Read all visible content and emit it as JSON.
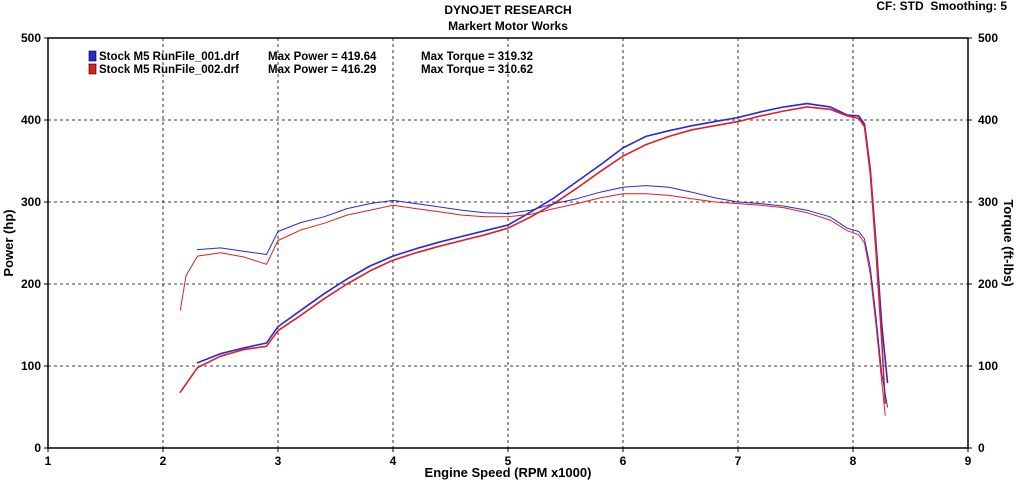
{
  "header": {
    "title": "DYNOJET RESEARCH",
    "subtitle": "Markert Motor Works",
    "corner": "CF: STD  Smoothing: 5"
  },
  "chart_data": {
    "type": "line",
    "xlabel": "Engine Speed (RPM x1000)",
    "ylabel_left": "Power (hp)",
    "ylabel_right": "Torque (ft-lbs)",
    "xlim": [
      1,
      9
    ],
    "ylim": [
      0,
      500
    ],
    "x_ticks": [
      "1",
      "2",
      "3",
      "4",
      "5",
      "6",
      "7",
      "8",
      "9"
    ],
    "y_ticks": [
      "0",
      "100",
      "200",
      "300",
      "400",
      "500"
    ],
    "grid": true,
    "legend": {
      "position": "top-left",
      "entries": [
        {
          "file": "Stock M5 RunFile_001.drf",
          "max_power": "Max Power = 419.64",
          "max_torque": "Max Torque = 319.32",
          "color": "#2828d8"
        },
        {
          "file": "Stock M5 RunFile_002.drf",
          "max_power": "Max Power = 416.29",
          "max_torque": "Max Torque = 310.62",
          "color": "#e02020"
        }
      ]
    },
    "series": [
      {
        "kind": "power",
        "color": "#2828d8",
        "points": [
          [
            2.3,
            104
          ],
          [
            2.5,
            115
          ],
          [
            2.7,
            122
          ],
          [
            2.9,
            128
          ],
          [
            3.0,
            148
          ],
          [
            3.2,
            168
          ],
          [
            3.4,
            188
          ],
          [
            3.6,
            206
          ],
          [
            3.8,
            222
          ],
          [
            4.0,
            234
          ],
          [
            4.2,
            243
          ],
          [
            4.4,
            251
          ],
          [
            4.6,
            258
          ],
          [
            4.8,
            265
          ],
          [
            5.0,
            272
          ],
          [
            5.2,
            288
          ],
          [
            5.4,
            305
          ],
          [
            5.6,
            325
          ],
          [
            5.8,
            345
          ],
          [
            6.0,
            366
          ],
          [
            6.2,
            380
          ],
          [
            6.4,
            387
          ],
          [
            6.6,
            393
          ],
          [
            6.8,
            398
          ],
          [
            7.0,
            403
          ],
          [
            7.2,
            410
          ],
          [
            7.4,
            416
          ],
          [
            7.6,
            420
          ],
          [
            7.8,
            416
          ],
          [
            7.95,
            406
          ],
          [
            8.05,
            405
          ],
          [
            8.1,
            395
          ],
          [
            8.15,
            340
          ],
          [
            8.2,
            250
          ],
          [
            8.25,
            150
          ],
          [
            8.3,
            80
          ]
        ]
      },
      {
        "kind": "power",
        "color": "#e02020",
        "points": [
          [
            2.15,
            68
          ],
          [
            2.3,
            98
          ],
          [
            2.5,
            112
          ],
          [
            2.7,
            120
          ],
          [
            2.9,
            124
          ],
          [
            3.0,
            143
          ],
          [
            3.2,
            162
          ],
          [
            3.4,
            182
          ],
          [
            3.6,
            200
          ],
          [
            3.8,
            216
          ],
          [
            4.0,
            229
          ],
          [
            4.2,
            238
          ],
          [
            4.4,
            246
          ],
          [
            4.6,
            253
          ],
          [
            4.8,
            260
          ],
          [
            5.0,
            268
          ],
          [
            5.2,
            282
          ],
          [
            5.4,
            298
          ],
          [
            5.6,
            317
          ],
          [
            5.8,
            337
          ],
          [
            6.0,
            356
          ],
          [
            6.2,
            370
          ],
          [
            6.4,
            380
          ],
          [
            6.6,
            388
          ],
          [
            6.8,
            393
          ],
          [
            7.0,
            398
          ],
          [
            7.2,
            405
          ],
          [
            7.4,
            411
          ],
          [
            7.6,
            416
          ],
          [
            7.8,
            413
          ],
          [
            7.95,
            405
          ],
          [
            8.05,
            402
          ],
          [
            8.1,
            392
          ],
          [
            8.15,
            335
          ],
          [
            8.2,
            240
          ],
          [
            8.25,
            130
          ],
          [
            8.28,
            55
          ]
        ]
      },
      {
        "kind": "torque",
        "color": "#2828d8",
        "points": [
          [
            2.3,
            242
          ],
          [
            2.5,
            244
          ],
          [
            2.7,
            240
          ],
          [
            2.9,
            236
          ],
          [
            3.0,
            264
          ],
          [
            3.2,
            275
          ],
          [
            3.4,
            282
          ],
          [
            3.6,
            292
          ],
          [
            3.8,
            298
          ],
          [
            4.0,
            302
          ],
          [
            4.2,
            298
          ],
          [
            4.4,
            294
          ],
          [
            4.6,
            290
          ],
          [
            4.8,
            287
          ],
          [
            5.0,
            286
          ],
          [
            5.2,
            290
          ],
          [
            5.4,
            298
          ],
          [
            5.6,
            304
          ],
          [
            5.8,
            312
          ],
          [
            6.0,
            318
          ],
          [
            6.2,
            320
          ],
          [
            6.4,
            318
          ],
          [
            6.6,
            312
          ],
          [
            6.8,
            305
          ],
          [
            7.0,
            300
          ],
          [
            7.2,
            298
          ],
          [
            7.4,
            295
          ],
          [
            7.6,
            290
          ],
          [
            7.8,
            282
          ],
          [
            7.95,
            268
          ],
          [
            8.05,
            264
          ],
          [
            8.1,
            255
          ],
          [
            8.15,
            220
          ],
          [
            8.2,
            160
          ],
          [
            8.25,
            90
          ],
          [
            8.3,
            50
          ]
        ]
      },
      {
        "kind": "torque",
        "color": "#e02020",
        "points": [
          [
            2.15,
            168
          ],
          [
            2.2,
            210
          ],
          [
            2.3,
            234
          ],
          [
            2.5,
            238
          ],
          [
            2.7,
            233
          ],
          [
            2.9,
            224
          ],
          [
            3.0,
            253
          ],
          [
            3.2,
            266
          ],
          [
            3.4,
            274
          ],
          [
            3.6,
            284
          ],
          [
            3.8,
            290
          ],
          [
            4.0,
            296
          ],
          [
            4.2,
            292
          ],
          [
            4.4,
            288
          ],
          [
            4.6,
            284
          ],
          [
            4.8,
            282
          ],
          [
            5.0,
            282
          ],
          [
            5.2,
            285
          ],
          [
            5.4,
            292
          ],
          [
            5.6,
            298
          ],
          [
            5.8,
            305
          ],
          [
            6.0,
            310
          ],
          [
            6.2,
            310
          ],
          [
            6.4,
            308
          ],
          [
            6.6,
            304
          ],
          [
            6.8,
            300
          ],
          [
            7.0,
            298
          ],
          [
            7.2,
            296
          ],
          [
            7.4,
            293
          ],
          [
            7.6,
            287
          ],
          [
            7.8,
            278
          ],
          [
            7.95,
            265
          ],
          [
            8.05,
            260
          ],
          [
            8.1,
            250
          ],
          [
            8.15,
            212
          ],
          [
            8.2,
            150
          ],
          [
            8.25,
            80
          ],
          [
            8.28,
            40
          ]
        ]
      }
    ]
  }
}
